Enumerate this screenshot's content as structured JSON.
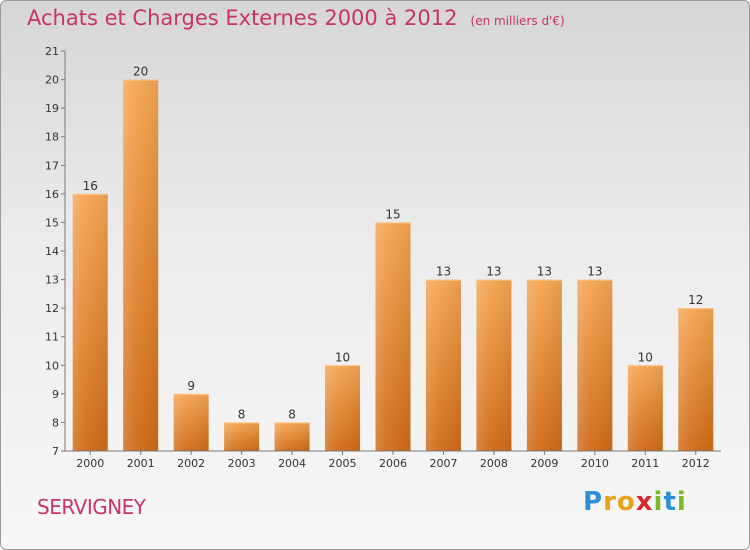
{
  "header": {
    "title": "Achats et Charges Externes 2000 à 2012",
    "unit": "(en milliers d'€)"
  },
  "footer": {
    "commune": "SERVIGNEY",
    "logo_letters": [
      "P",
      "r",
      "o",
      "x",
      "i",
      "t",
      "i"
    ],
    "logo_colors": [
      "#2e8fd8",
      "#e8a318",
      "#e8a318",
      "#d9262e",
      "#7ab829",
      "#2e8fd8",
      "#7ab829"
    ]
  },
  "colors": {
    "title": "#c8336a",
    "bar_light": "#f5a552",
    "bar_dark": "#cf6a16",
    "axis": "#7a7a7a"
  },
  "chart_data": {
    "type": "bar",
    "title": "Achats et Charges Externes 2000 à 2012",
    "subtitle": "(en milliers d'€)",
    "categories": [
      "2000",
      "2001",
      "2002",
      "2003",
      "2004",
      "2005",
      "2006",
      "2007",
      "2008",
      "2009",
      "2010",
      "2011",
      "2012"
    ],
    "values": [
      16,
      20,
      9,
      8,
      8,
      10,
      15,
      13,
      13,
      13,
      13,
      10,
      12
    ],
    "ylim": [
      7,
      21
    ],
    "yticks": [
      7,
      8,
      9,
      10,
      11,
      12,
      13,
      14,
      15,
      16,
      17,
      18,
      19,
      20,
      21
    ],
    "grid": false,
    "data_labels": true
  }
}
